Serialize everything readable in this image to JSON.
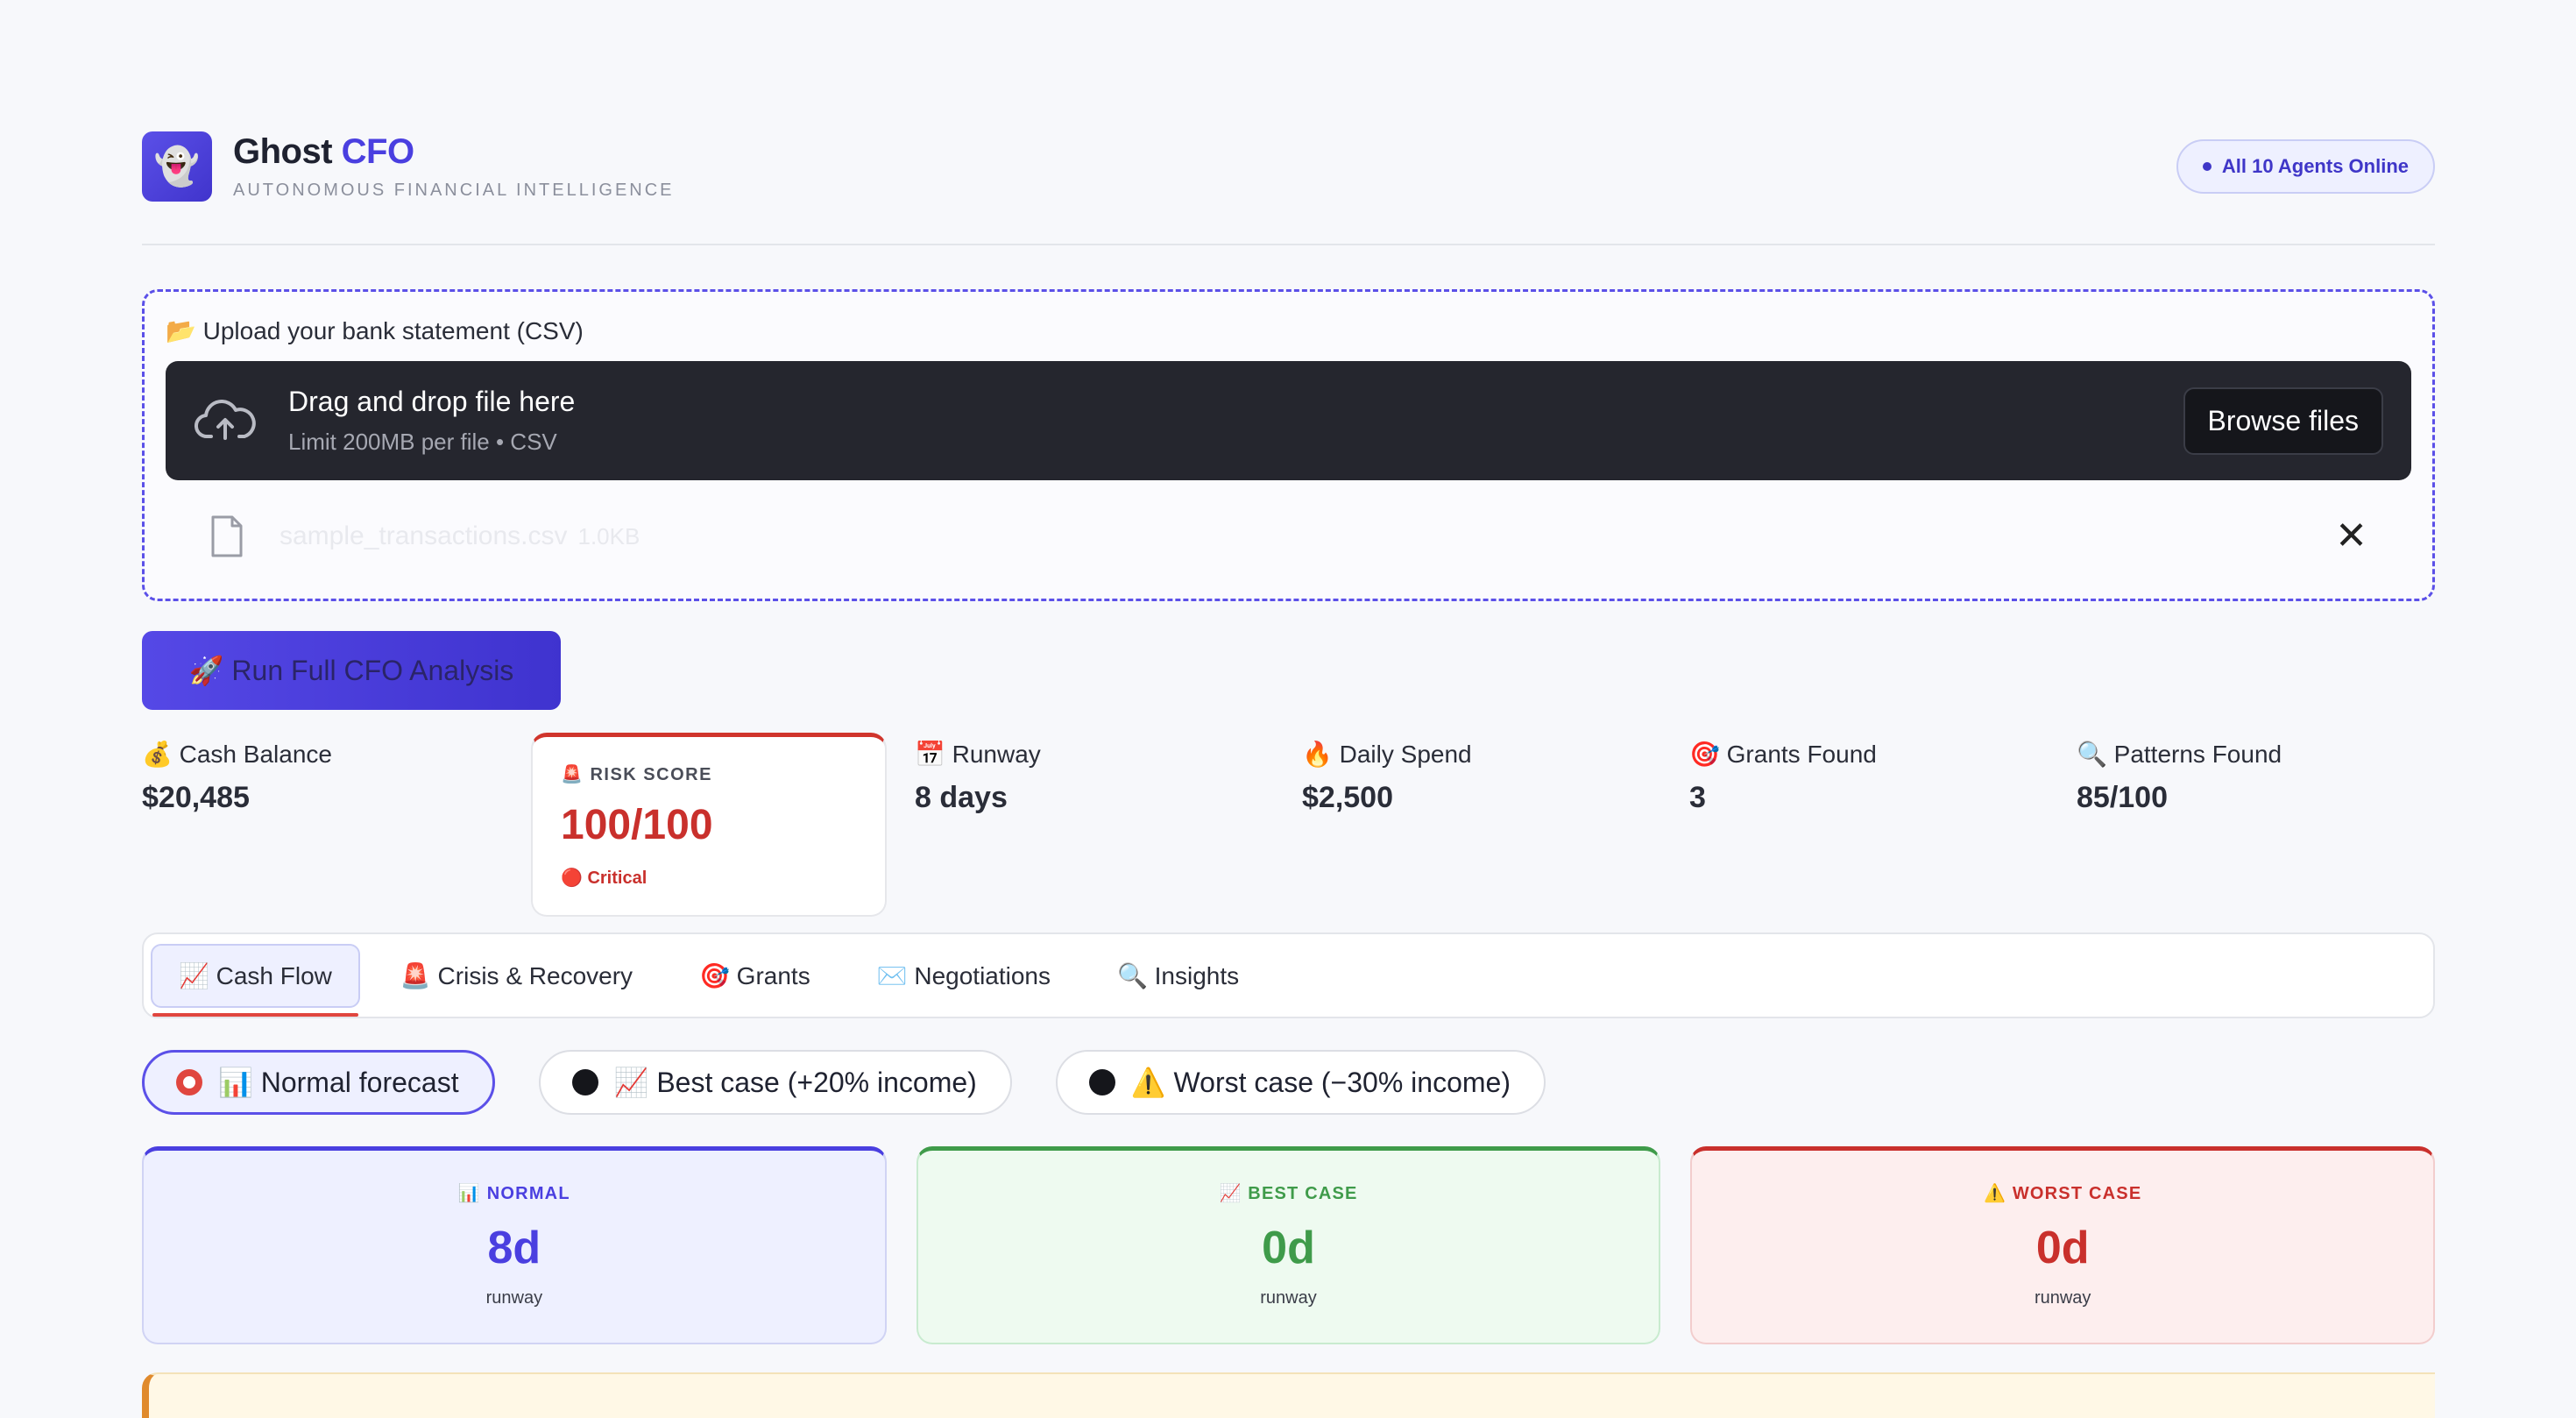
{
  "header": {
    "logo_glyph": "👻",
    "title_main": "Ghost ",
    "title_accent": "CFO",
    "subtitle": "AUTONOMOUS FINANCIAL INTELLIGENCE",
    "status": "All 10 Agents Online"
  },
  "upload": {
    "label": "📂 Upload your bank statement (CSV)",
    "dropzone_title": "Drag and drop file here",
    "dropzone_sub": "Limit 200MB per file • CSV",
    "browse_label": "Browse files",
    "file_name": "sample_transactions.csv",
    "file_size": "1.0KB"
  },
  "run_button": "🚀 Run Full CFO Analysis",
  "metrics": {
    "cash_balance_label": "💰 Cash Balance",
    "cash_balance_value": "$20,485",
    "risk_label": "🚨 RISK SCORE",
    "risk_value": "100/100",
    "risk_status": "🔴 Critical",
    "runway_label": "📅 Runway",
    "runway_value": "8 days",
    "daily_spend_label": "🔥 Daily Spend",
    "daily_spend_value": "$2,500",
    "grants_label": "🎯 Grants Found",
    "grants_value": "3",
    "patterns_label": "🔍 Patterns Found",
    "patterns_value": "85/100"
  },
  "tabs": [
    {
      "label": "📈 Cash Flow"
    },
    {
      "label": "🚨 Crisis & Recovery"
    },
    {
      "label": "🎯 Grants"
    },
    {
      "label": "✉️ Negotiations"
    },
    {
      "label": "🔍 Insights"
    }
  ],
  "scenarios": [
    {
      "label": "📊 Normal forecast"
    },
    {
      "label": "📈 Best case (+20% income)"
    },
    {
      "label": "⚠️ Worst case (−30% income)"
    }
  ],
  "cards": {
    "normal": {
      "label": "📊 NORMAL",
      "value": "8d",
      "sub": "runway"
    },
    "best": {
      "label": "📈 BEST CASE",
      "value": "0d",
      "sub": "runway"
    },
    "worst": {
      "label": "⚠️ WORST CASE",
      "value": "0d",
      "sub": "runway"
    }
  },
  "colors": {
    "accent": "#4a3fe0",
    "danger": "#c9302c",
    "success": "#3f9b4a"
  }
}
